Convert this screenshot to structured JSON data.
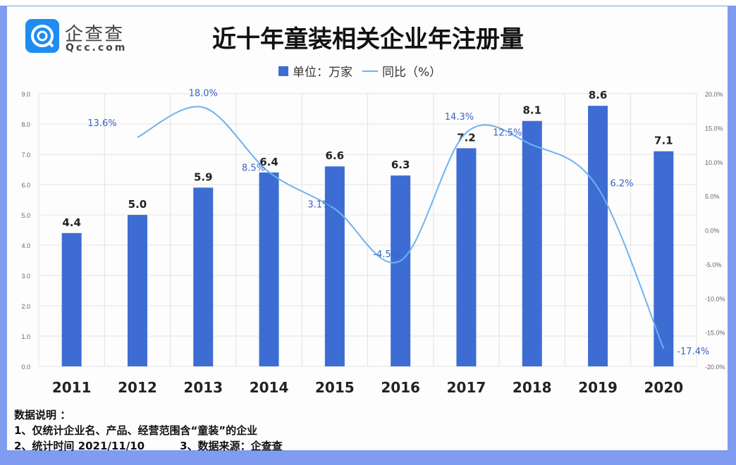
{
  "header": {
    "logo_cn": "企查查",
    "logo_en": "Qcc.com",
    "title": "近十年童装相关企业年注册量"
  },
  "legend": {
    "bar": "单位：万家",
    "line": "同比（%）"
  },
  "colors": {
    "bar": "#3d6dd3",
    "line": "#6fb2ee",
    "frame": "#7f9cf0",
    "line_label": "#3a63c8"
  },
  "chart_data": {
    "type": "bar+line",
    "title": "近十年童装相关企业年注册量",
    "categories": [
      "2011",
      "2012",
      "2013",
      "2014",
      "2015",
      "2016",
      "2017",
      "2018",
      "2019",
      "2020"
    ],
    "series": [
      {
        "name": "单位：万家",
        "type": "bar",
        "axis": "left",
        "values": [
          4.4,
          5.0,
          5.9,
          6.4,
          6.6,
          6.3,
          7.2,
          8.1,
          8.6,
          7.1
        ],
        "labels": [
          "4.4",
          "5.0",
          "5.9",
          "6.4",
          "6.6",
          "6.3",
          "7.2",
          "8.1",
          "8.6",
          "7.1"
        ]
      },
      {
        "name": "同比（%）",
        "type": "line",
        "axis": "right",
        "values": [
          null,
          13.6,
          18.0,
          8.5,
          3.1,
          -4.5,
          14.3,
          12.5,
          6.2,
          -17.4
        ],
        "labels": [
          "",
          "13.6%",
          "18.0%",
          "8.5%",
          "3.1%",
          "-4.5%",
          "14.3%",
          "12.5%",
          "6.2%",
          "-17.4%"
        ]
      }
    ],
    "y_left": {
      "ylim": [
        0,
        9
      ],
      "ticks": [
        "0.0",
        "1.0",
        "2.0",
        "3.0",
        "4.0",
        "5.0",
        "6.0",
        "7.0",
        "8.0",
        "9.0"
      ]
    },
    "y_right": {
      "ylim": [
        -20,
        20
      ],
      "ticks": [
        "-20.0%",
        "-15.0%",
        "-10.0%",
        "-5.0%",
        "0.0%",
        "5.0%",
        "10.0%",
        "15.0%",
        "20.0%"
      ]
    },
    "grid": true,
    "legend_position": "top-center"
  },
  "notes": {
    "heading": "数据说明 ：",
    "line1": "1、仅统计企业名、产品、经营范围含“童装”的企业",
    "line2a": "2、统计时间 2021/11/10",
    "line2b": "3、数据来源：企查查"
  }
}
